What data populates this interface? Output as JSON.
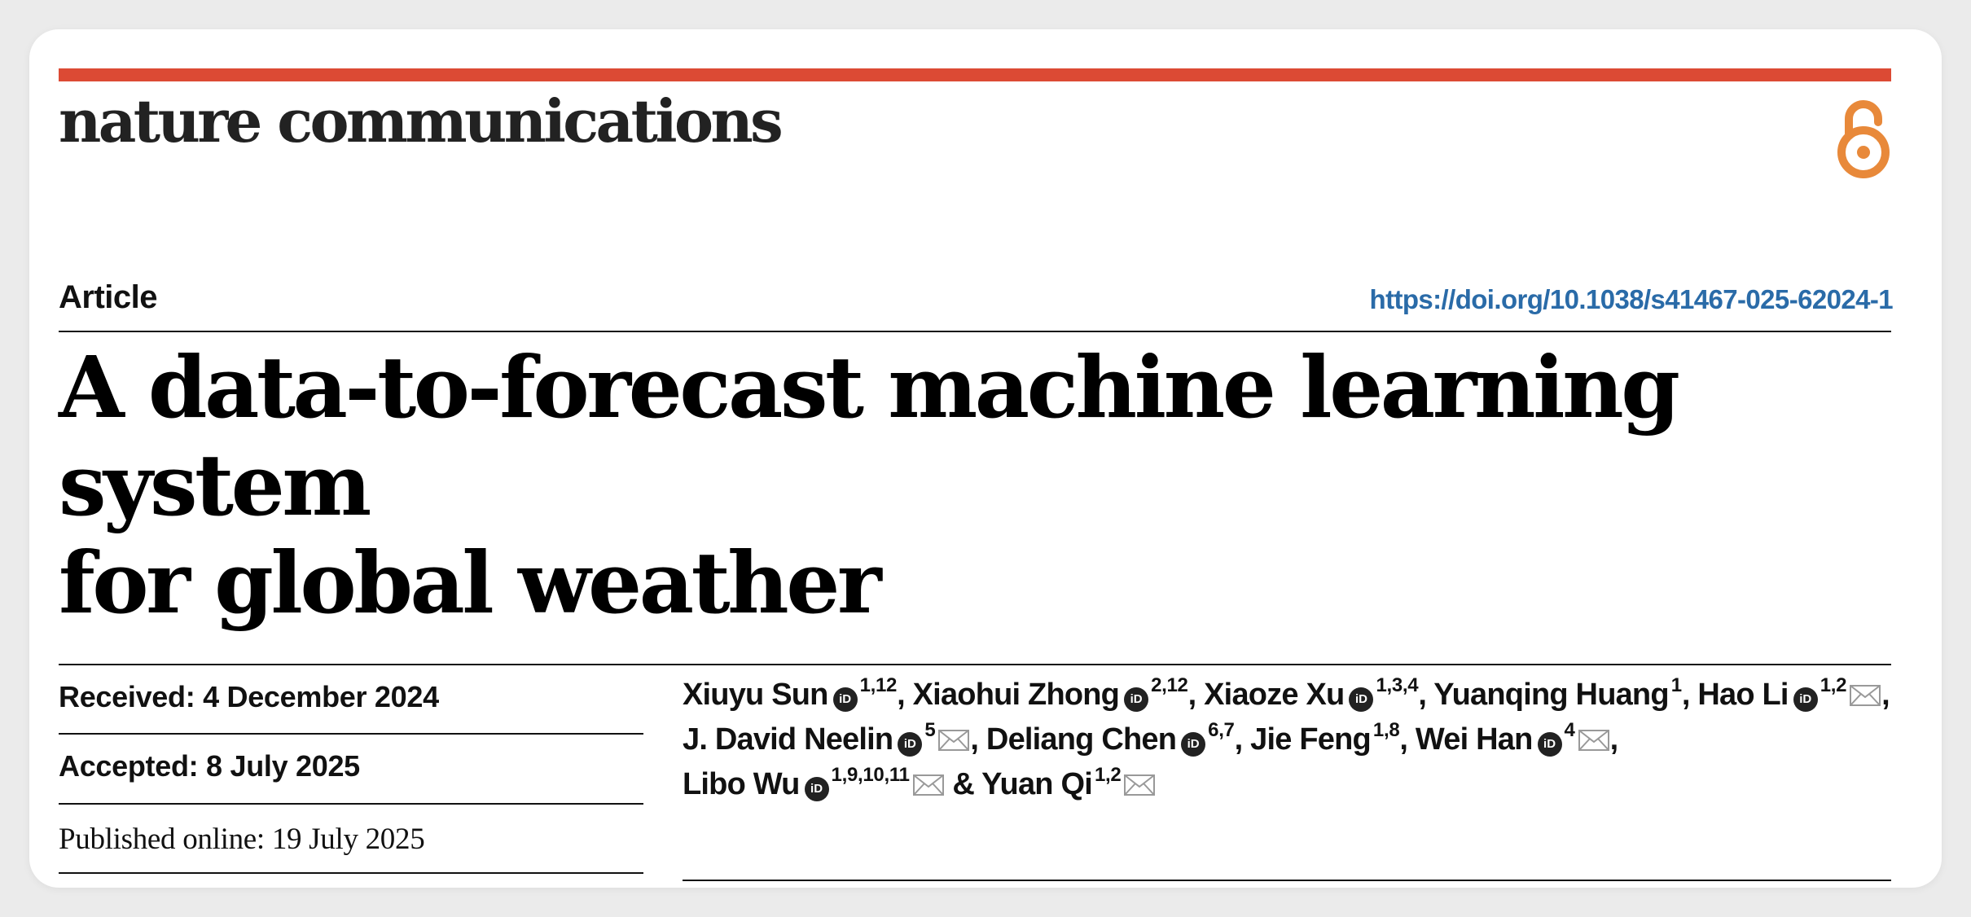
{
  "journal": {
    "name": "nature communications",
    "accent_color": "#dc4a34",
    "open_access_icon": "open-access-icon",
    "open_access_color": "#e8893a"
  },
  "article": {
    "type": "Article",
    "doi_url": "https://doi.org/10.1038/s41467-025-62024-1",
    "title_line1": "A data-to-forecast machine learning system",
    "title_line2": "for global weather"
  },
  "dates": {
    "received": "Received: 4 December 2024",
    "accepted": "Accepted: 8 July 2025",
    "published": "Published online: 19 July 2025"
  },
  "authors": [
    {
      "name": "Xiuyu Sun",
      "orcid": true,
      "aff": "1,12",
      "email": false,
      "sep": ", "
    },
    {
      "name": "Xiaohui Zhong",
      "orcid": true,
      "aff": "2,12",
      "email": false,
      "sep": ", "
    },
    {
      "name": "Xiaoze Xu",
      "orcid": true,
      "aff": "1,3,4",
      "email": false,
      "sep": ", "
    },
    {
      "name": "Yuanqing Huang",
      "orcid": false,
      "aff": "1",
      "email": false,
      "sep": ", "
    },
    {
      "name": "Hao Li",
      "orcid": true,
      "aff": "1,2",
      "email": true,
      "sep": ", "
    },
    {
      "name": "J. David Neelin",
      "orcid": true,
      "aff": "5",
      "email": true,
      "sep": ", "
    },
    {
      "name": "Deliang Chen",
      "orcid": true,
      "aff": "6,7",
      "email": false,
      "sep": ", "
    },
    {
      "name": "Jie Feng",
      "orcid": false,
      "aff": "1,8",
      "email": false,
      "sep": ", "
    },
    {
      "name": "Wei Han",
      "orcid": true,
      "aff": "4",
      "email": true,
      "sep": ", "
    },
    {
      "name": "Libo Wu",
      "orcid": true,
      "aff": "1,9,10,11",
      "email": true,
      "sep": " & "
    },
    {
      "name": "Yuan Qi",
      "orcid": false,
      "aff": "1,2",
      "email": true,
      "sep": ""
    }
  ],
  "icons": {
    "orcid": "orcid-icon",
    "email": "email-icon"
  }
}
